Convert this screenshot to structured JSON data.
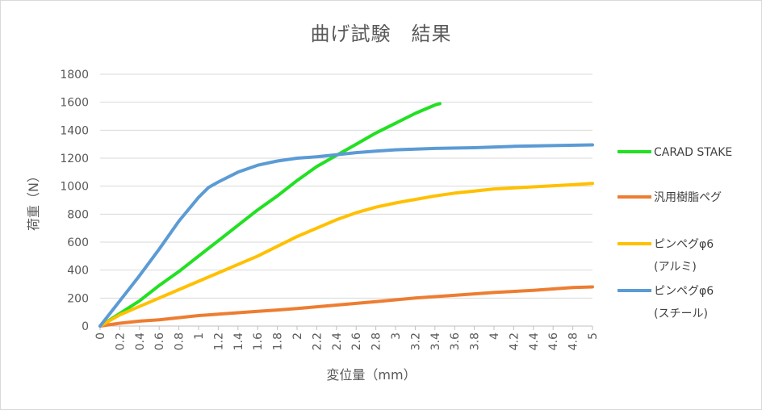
{
  "chart_data": {
    "type": "line",
    "title": "曲げ試験　結果",
    "xlabel": "変位量（mm）",
    "ylabel": "荷重（N）",
    "xlim": [
      0,
      5
    ],
    "ylim": [
      0,
      1800
    ],
    "grid": true,
    "legend_position": "right",
    "y_ticks": [
      "0",
      "200",
      "400",
      "600",
      "800",
      "1000",
      "1200",
      "1400",
      "1600",
      "1800"
    ],
    "x_ticks": [
      {
        "value": 0,
        "label": "0"
      },
      {
        "value": 0.2,
        "label": "0.2"
      },
      {
        "value": 0.4,
        "label": "0.4"
      },
      {
        "value": 0.6,
        "label": "0.6"
      },
      {
        "value": 0.8,
        "label": "0.8"
      },
      {
        "value": 1,
        "label": "1"
      },
      {
        "value": 1.2,
        "label": "1.2"
      },
      {
        "value": 1.4,
        "label": "1.4"
      },
      {
        "value": 1.6,
        "label": "1.6"
      },
      {
        "value": 1.8,
        "label": "1.8"
      },
      {
        "value": 2,
        "label": "2"
      },
      {
        "value": 2.2,
        "label": "2.2"
      },
      {
        "value": 2.4,
        "label": "2.4"
      },
      {
        "value": 2.6,
        "label": "2.6"
      },
      {
        "value": 2.8,
        "label": "2.8"
      },
      {
        "value": 3,
        "label": "3"
      },
      {
        "value": 3.2,
        "label": "3.2"
      },
      {
        "value": 3.4,
        "label": "3.4"
      },
      {
        "value": 3.6,
        "label": "3.6"
      },
      {
        "value": 3.8,
        "label": "3.8"
      },
      {
        "value": 4,
        "label": "4"
      },
      {
        "value": 4.2,
        "label": "4.2"
      },
      {
        "value": 4.4,
        "label": "4.4"
      },
      {
        "value": 4.6,
        "label": "4.6"
      },
      {
        "value": 4.8,
        "label": "4.8"
      },
      {
        "value": 5,
        "label": "5"
      }
    ],
    "series": [
      {
        "name": "CARAD STAKE",
        "legend_lines": [
          "CARAD STAKE"
        ],
        "color": "#22e022",
        "x": [
          0,
          0.2,
          0.4,
          0.6,
          0.8,
          1.0,
          1.2,
          1.4,
          1.6,
          1.8,
          2.0,
          2.2,
          2.4,
          2.6,
          2.8,
          3.0,
          3.2,
          3.4,
          3.45
        ],
        "y": [
          0,
          90,
          180,
          290,
          390,
          500,
          610,
          720,
          830,
          930,
          1040,
          1140,
          1220,
          1300,
          1380,
          1450,
          1520,
          1580,
          1590
        ]
      },
      {
        "name": "汎用樹脂ペグ",
        "legend_lines": [
          "汎用樹脂ペグ"
        ],
        "color": "#ed7d31",
        "x": [
          0,
          0.2,
          0.4,
          0.6,
          0.8,
          1.0,
          1.2,
          1.4,
          1.6,
          1.8,
          2.0,
          2.4,
          2.8,
          3.2,
          3.6,
          4.0,
          4.4,
          4.8,
          5.0
        ],
        "y": [
          0,
          20,
          35,
          45,
          60,
          75,
          85,
          95,
          105,
          115,
          125,
          150,
          175,
          200,
          220,
          240,
          255,
          275,
          280
        ]
      },
      {
        "name": "ピンペグφ6 (アルミ)",
        "legend_lines": [
          "ピンペグφ6",
          "(アルミ)"
        ],
        "color": "#ffc000",
        "x": [
          0,
          0.2,
          0.4,
          0.6,
          0.8,
          1.0,
          1.2,
          1.4,
          1.6,
          1.8,
          2.0,
          2.2,
          2.4,
          2.6,
          2.8,
          3.0,
          3.2,
          3.4,
          3.6,
          3.8,
          4.0,
          4.4,
          4.8,
          5.0
        ],
        "y": [
          0,
          80,
          140,
          200,
          260,
          320,
          380,
          440,
          500,
          570,
          640,
          700,
          760,
          810,
          850,
          880,
          905,
          930,
          950,
          965,
          980,
          995,
          1010,
          1020
        ]
      },
      {
        "name": "ピンペグφ6 (スチール)",
        "legend_lines": [
          "ピンペグφ6",
          "(スチール)"
        ],
        "color": "#5b9bd5",
        "x": [
          0,
          0.2,
          0.4,
          0.6,
          0.8,
          1.0,
          1.1,
          1.2,
          1.4,
          1.6,
          1.8,
          2.0,
          2.2,
          2.4,
          2.6,
          2.8,
          3.0,
          3.4,
          3.8,
          4.2,
          4.6,
          5.0
        ],
        "y": [
          0,
          180,
          360,
          550,
          750,
          920,
          990,
          1030,
          1100,
          1150,
          1180,
          1200,
          1210,
          1225,
          1240,
          1250,
          1260,
          1270,
          1275,
          1285,
          1290,
          1295
        ]
      }
    ]
  }
}
